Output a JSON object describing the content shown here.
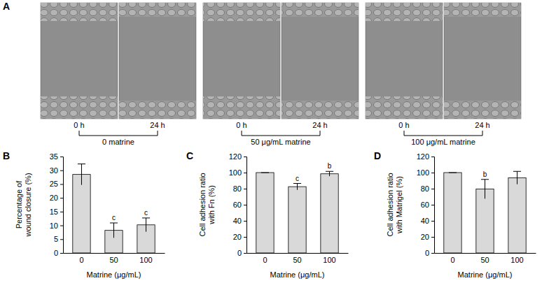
{
  "panel_a": {
    "label": "A",
    "groups": [
      {
        "label": "0 matrine",
        "times": [
          "0 h",
          "24 h"
        ]
      },
      {
        "label": "50 μg/mL matrine",
        "times": [
          "0 h",
          "24 h"
        ]
      },
      {
        "label": "100 μg/mL matrine",
        "times": [
          "0 h",
          "24 h"
        ]
      }
    ]
  },
  "chart_data": [
    {
      "type": "bar",
      "panel": "B",
      "categories": [
        "0",
        "50",
        "100"
      ],
      "values": [
        28.5,
        8.2,
        10.2
      ],
      "errors": [
        3.8,
        2.7,
        2.5
      ],
      "annotations": [
        null,
        "c",
        "c"
      ],
      "color": "#d9d9d9",
      "ylim": [
        0,
        35
      ],
      "yticks": [
        0,
        5,
        10,
        15,
        20,
        25,
        30,
        35
      ],
      "x_label": "Matrine (μg/mL)",
      "y_label": [
        "Percentage of",
        "wound closure (%)"
      ]
    },
    {
      "type": "bar",
      "panel": "C",
      "categories": [
        "0",
        "50",
        "100"
      ],
      "values": [
        100,
        82.5,
        98.5
      ],
      "errors": [
        0,
        4,
        3
      ],
      "annotations": [
        null,
        "c",
        "b"
      ],
      "color": "#d9d9d9",
      "ylim": [
        0,
        120
      ],
      "yticks": [
        0,
        20,
        40,
        60,
        80,
        100,
        120
      ],
      "x_label": "Matrine (μg/mL)",
      "y_label": [
        "Cell adhesion ratio",
        "with Fn (%)"
      ]
    },
    {
      "type": "bar",
      "panel": "D",
      "categories": [
        "0",
        "50",
        "100"
      ],
      "values": [
        100,
        79.5,
        93.5
      ],
      "errors": [
        0,
        12,
        8
      ],
      "annotations": [
        null,
        "b",
        null
      ],
      "color": "#d9d9d9",
      "ylim": [
        0,
        120
      ],
      "yticks": [
        0,
        20,
        40,
        60,
        80,
        100,
        120
      ],
      "x_label": "Matrine (μg/mL)",
      "y_label": [
        "Cell adhesion ratio",
        "with Matrigel (%)"
      ]
    }
  ]
}
